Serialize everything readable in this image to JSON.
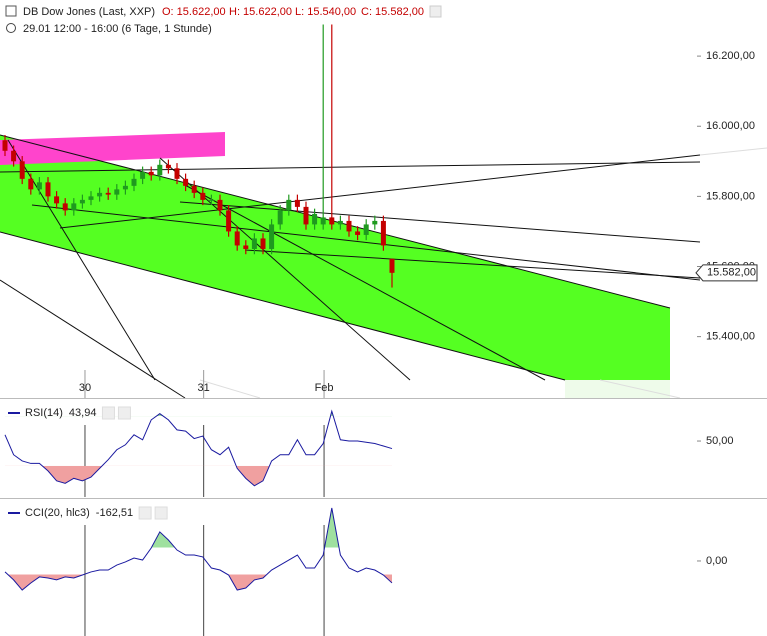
{
  "chart_data": [
    {
      "type": "candlestick",
      "title": "DB Dow Jones (Last, XXP)",
      "ohlc_labels": [
        "O: 15.622,00",
        "H: 15.622,00",
        "L: 15.540,00",
        "C: 15.582,00"
      ],
      "subtitle": "29.01 12:00 - 16:00 (6 Tage, 1 Stunde)",
      "up_color": "#1f9a1f",
      "down_color": "#c40000",
      "open": [
        15960,
        15930,
        15900,
        15850,
        15820,
        15840,
        15800,
        15780,
        15760,
        15780,
        15790,
        15800,
        15810,
        15805,
        15820,
        15830,
        15850,
        15870,
        15860,
        15890,
        15880,
        15850,
        15830,
        15810,
        15790,
        15790,
        15760,
        15700,
        15660,
        15650,
        15680,
        15650,
        15720,
        15760,
        15790,
        15770,
        15720,
        15720,
        15740,
        15720,
        15730,
        15700,
        15690,
        15720,
        15730,
        15622
      ],
      "high": [
        15975,
        15945,
        15915,
        15865,
        15855,
        15855,
        15815,
        15795,
        15795,
        15805,
        15815,
        15825,
        15825,
        15835,
        15845,
        15865,
        15885,
        15885,
        15905,
        15905,
        15895,
        15865,
        15845,
        15825,
        15805,
        15805,
        15775,
        15715,
        15675,
        15695,
        15695,
        15735,
        15775,
        15805,
        15805,
        15785,
        15765,
        16290,
        16290,
        15745,
        15745,
        15715,
        15735,
        15745,
        15745,
        15622
      ],
      "low": [
        15915,
        15885,
        15835,
        15805,
        15805,
        15785,
        15765,
        15745,
        15745,
        15765,
        15775,
        15785,
        15790,
        15790,
        15805,
        15815,
        15835,
        15845,
        15845,
        15865,
        15835,
        15815,
        15795,
        15775,
        15775,
        15745,
        15685,
        15645,
        15635,
        15635,
        15635,
        15635,
        15705,
        15745,
        15755,
        15705,
        15705,
        15705,
        15705,
        15705,
        15685,
        15675,
        15675,
        15705,
        15645,
        15540
      ],
      "close": [
        15930,
        15900,
        15850,
        15820,
        15840,
        15800,
        15780,
        15760,
        15780,
        15790,
        15800,
        15810,
        15805,
        15820,
        15830,
        15850,
        15870,
        15860,
        15890,
        15880,
        15850,
        15830,
        15810,
        15790,
        15790,
        15760,
        15700,
        15660,
        15650,
        15680,
        15650,
        15720,
        15760,
        15790,
        15770,
        15720,
        15750,
        15740,
        15720,
        15730,
        15700,
        15690,
        15720,
        15730,
        15660,
        15582
      ],
      "ylim": [
        15225,
        16360
      ],
      "yticks": [
        {
          "value": 16200,
          "label": "16.200,00"
        },
        {
          "value": 16000,
          "label": "16.000,00"
        },
        {
          "value": 15800,
          "label": "15.800,00"
        },
        {
          "value": 15600,
          "label": "15.600,00"
        },
        {
          "value": 15400,
          "label": "15.400,00"
        }
      ],
      "xticks": [
        {
          "value": 9.3,
          "label": "30"
        },
        {
          "value": 23.1,
          "label": "31"
        },
        {
          "value": 37.1,
          "label": "Feb"
        }
      ],
      "last_price": {
        "value": 15582,
        "label": "15.582,00"
      }
    },
    {
      "type": "line",
      "name": "RSI(14)",
      "value_label": "43,94",
      "color": "#1a1aa0",
      "values": [
        55,
        39,
        34,
        32,
        32,
        26,
        18,
        16,
        20,
        18,
        21,
        28,
        35,
        43,
        47,
        55,
        51,
        67,
        72,
        67,
        59,
        58,
        52,
        54,
        43,
        39,
        45,
        28,
        20,
        14,
        18,
        34,
        39,
        39,
        51,
        39,
        39,
        48,
        74,
        51,
        50,
        50,
        49,
        48,
        46,
        43.94
      ],
      "upper": 70,
      "lower": 30,
      "ylim": [
        5,
        83
      ],
      "yticks": [
        {
          "value": 50,
          "label": "50,00"
        }
      ]
    },
    {
      "type": "line",
      "name": "CCI(20, hlc3)",
      "value_label": "-162,51",
      "color": "#1a1aa0",
      "values": [
        -81,
        -140,
        -215,
        -163,
        -118,
        -126,
        -140,
        -118,
        -126,
        -104,
        -81,
        -67,
        -67,
        -30,
        -7,
        22,
        7,
        96,
        215,
        155,
        81,
        44,
        44,
        30,
        -52,
        -67,
        -104,
        -215,
        -200,
        -140,
        -126,
        -67,
        -30,
        7,
        44,
        -52,
        -52,
        44,
        392,
        44,
        -52,
        -81,
        -52,
        -67,
        -104,
        -162.51
      ],
      "upper": 100,
      "lower": -100,
      "ylim": [
        -555,
        451
      ],
      "yticks": [
        {
          "value": 0,
          "label": "0,00"
        }
      ]
    }
  ]
}
